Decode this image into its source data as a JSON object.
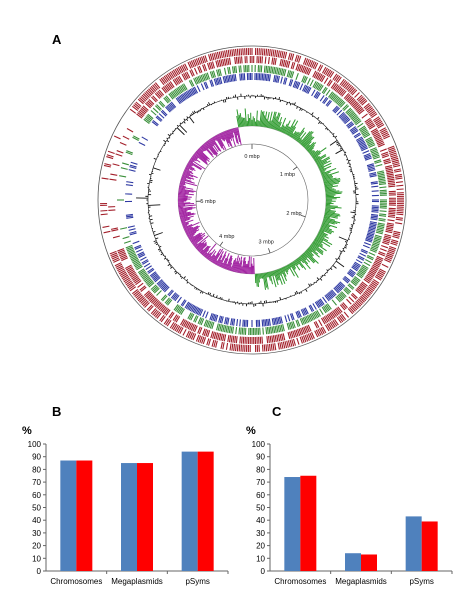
{
  "panels": {
    "a_label": "A",
    "b_label": "B",
    "c_label": "C"
  },
  "genome_map": {
    "scale_labels": [
      "0 mbp",
      "1 mbp",
      "2 mbp",
      "3 mbp",
      "4 mbp",
      "5 mbp"
    ],
    "colors": {
      "outer_track": "#a31f2a",
      "green_track": "#3a8f3a",
      "blue_track": "#2f3aa3",
      "gc_skew_positive": "#2e9a2e",
      "gc_skew_negative": "#a020a0",
      "gc_content": "#111111"
    }
  },
  "colors": {
    "series1": "#4f81bd",
    "series2": "#ff0000"
  },
  "chart_data": [
    {
      "type": "bar",
      "panel": "B",
      "ylabel": "%",
      "categories": [
        "Chromosomes",
        "Megaplasmids",
        "pSyms"
      ],
      "series": [
        {
          "values": [
            87,
            85,
            94
          ]
        },
        {
          "values": [
            87,
            85,
            94
          ]
        }
      ],
      "ylim": [
        0,
        100
      ],
      "yticks": [
        0,
        10,
        20,
        30,
        40,
        50,
        60,
        70,
        80,
        90,
        100
      ],
      "grid": false,
      "legend": "none"
    },
    {
      "type": "bar",
      "panel": "C",
      "ylabel": "%",
      "categories": [
        "Chromosomes",
        "Megaplasmids",
        "pSyms"
      ],
      "series": [
        {
          "values": [
            74,
            14,
            43
          ]
        },
        {
          "values": [
            75,
            13,
            39
          ]
        }
      ],
      "ylim": [
        0,
        100
      ],
      "yticks": [
        0,
        10,
        20,
        30,
        40,
        50,
        60,
        70,
        80,
        90,
        100
      ],
      "grid": false,
      "legend": "none"
    }
  ]
}
